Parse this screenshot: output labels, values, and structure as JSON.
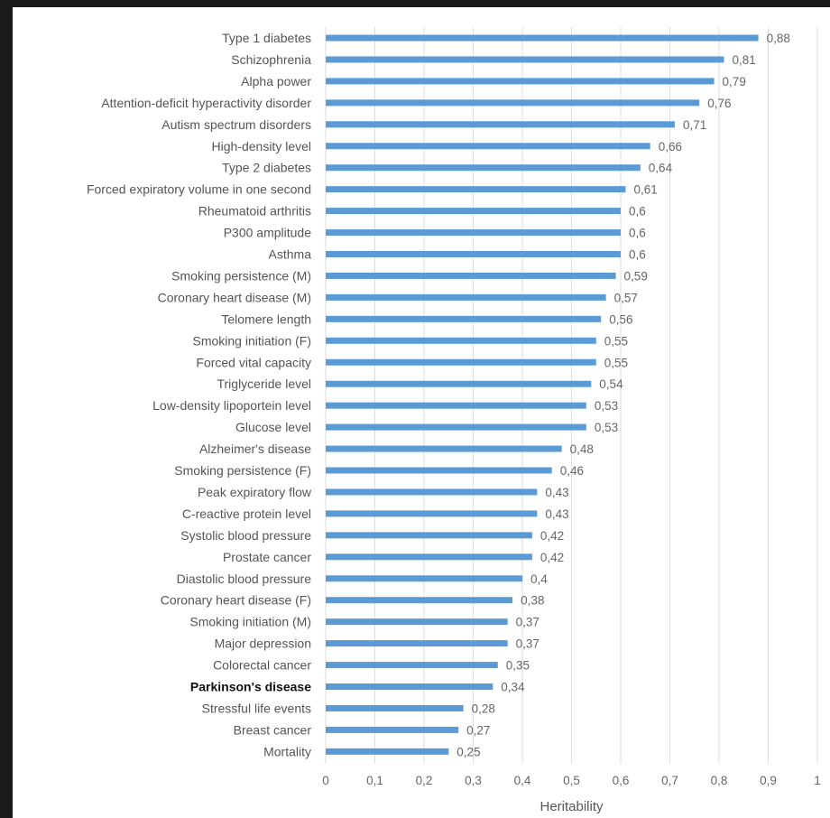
{
  "chart_data": {
    "type": "bar",
    "orientation": "horizontal",
    "xlabel": "Heritability",
    "xlim": [
      0,
      1
    ],
    "xticks": [
      "0",
      "0,1",
      "0,2",
      "0,3",
      "0,4",
      "0,5",
      "0,6",
      "0,7",
      "0,8",
      "0,9",
      "1"
    ],
    "grid": true,
    "bar_color": "#5b9bd5",
    "highlighted_category": "Parkinson's disease",
    "categories": [
      "Type 1 diabetes",
      "Schizophrenia",
      "Alpha power",
      "Attention-deficit hyperactivity disorder",
      "Autism spectrum disorders",
      "High-density level",
      "Type 2 diabetes",
      "Forced expiratory volume in one second",
      "Rheumatoid arthritis",
      "P300 amplitude",
      "Asthma",
      "Smoking persistence (M)",
      "Coronary heart disease (M)",
      "Telomere length",
      "Smoking initiation (F)",
      "Forced vital capacity",
      "Triglyceride level",
      "Low-density lipoportein level",
      "Glucose level",
      "Alzheimer's disease",
      "Smoking persistence (F)",
      "Peak expiratory flow",
      "C-reactive protein level",
      "Systolic blood pressure",
      "Prostate cancer",
      "Diastolic blood pressure",
      "Coronary heart disease (F)",
      "Smoking initiation (M)",
      "Major depression",
      "Colorectal cancer",
      "Parkinson's disease",
      "Stressful life events",
      "Breast cancer",
      "Mortality"
    ],
    "values": [
      0.88,
      0.81,
      0.79,
      0.76,
      0.71,
      0.66,
      0.64,
      0.61,
      0.6,
      0.6,
      0.6,
      0.59,
      0.57,
      0.56,
      0.55,
      0.55,
      0.54,
      0.53,
      0.53,
      0.48,
      0.46,
      0.43,
      0.43,
      0.42,
      0.42,
      0.4,
      0.38,
      0.37,
      0.37,
      0.35,
      0.34,
      0.28,
      0.27,
      0.25
    ],
    "value_labels": [
      "0,88",
      "0,81",
      "0,79",
      "0,76",
      "0,71",
      "0,66",
      "0,64",
      "0,61",
      "0,6",
      "0,6",
      "0,6",
      "0,59",
      "0,57",
      "0,56",
      "0,55",
      "0,55",
      "0,54",
      "0,53",
      "0,53",
      "0,48",
      "0,46",
      "0,43",
      "0,43",
      "0,42",
      "0,42",
      "0,4",
      "0,38",
      "0,37",
      "0,37",
      "0,35",
      "0,34",
      "0,28",
      "0,27",
      "0,25"
    ]
  }
}
